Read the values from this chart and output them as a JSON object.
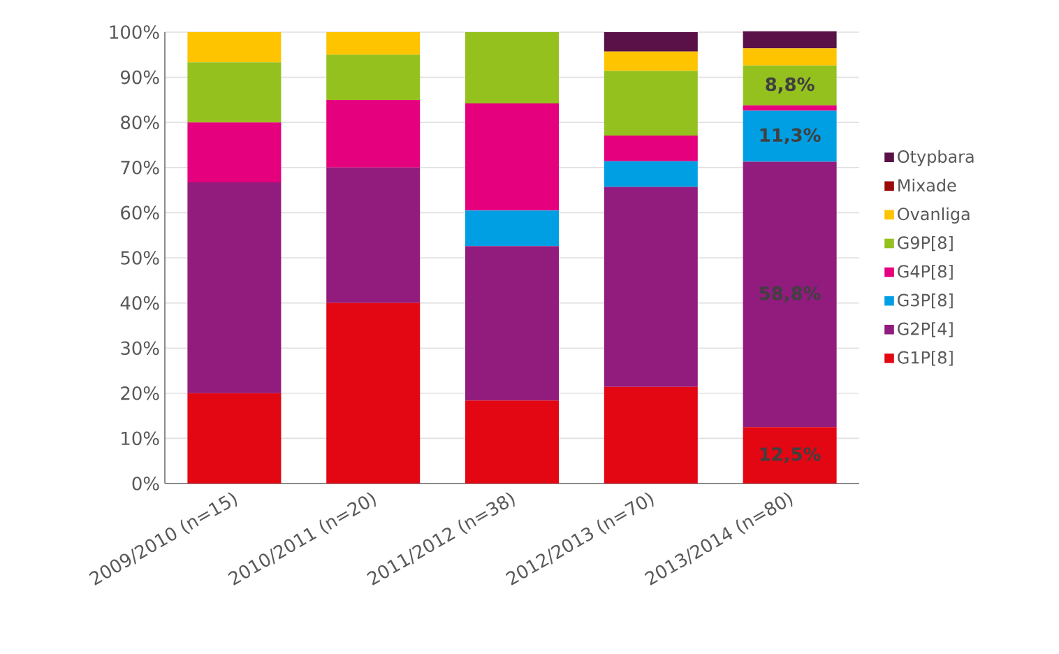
{
  "chart_data": {
    "type": "bar",
    "stacked": true,
    "categories": [
      "2009/2010 (n=15)",
      "2010/2011 (n=20)",
      "2011/2012 (n=38)",
      "2012/2013 (n=70)",
      "2013/2014 (n=80)"
    ],
    "series": [
      {
        "name": "G1P[8]",
        "color": "#e30613",
        "values": [
          20.0,
          40.0,
          18.4,
          21.4,
          12.5
        ],
        "value_labels": [
          null,
          null,
          null,
          null,
          "12,5%"
        ]
      },
      {
        "name": "G2P[4]",
        "color": "#921b7e",
        "values": [
          46.7,
          30.0,
          34.2,
          44.3,
          58.8
        ],
        "value_labels": [
          null,
          null,
          null,
          null,
          "58,8%"
        ]
      },
      {
        "name": "G3P[8]",
        "color": "#009fe3",
        "values": [
          0,
          0,
          7.9,
          5.7,
          11.3
        ],
        "value_labels": [
          null,
          null,
          null,
          null,
          "11,3%"
        ]
      },
      {
        "name": "G4P[8]",
        "color": "#e5007d",
        "values": [
          13.3,
          15.0,
          23.7,
          5.7,
          1.2
        ]
      },
      {
        "name": "G9P[8]",
        "color": "#95c11f",
        "values": [
          13.3,
          10.0,
          15.8,
          14.3,
          8.8
        ],
        "value_labels": [
          null,
          null,
          null,
          null,
          "8,8%"
        ]
      },
      {
        "name": "Ovanliga",
        "color": "#fec400",
        "values": [
          6.7,
          5.0,
          0,
          4.3,
          3.8
        ]
      },
      {
        "name": "Mixade",
        "color": "#9b0a0a",
        "values": [
          0,
          0,
          0,
          0,
          0
        ]
      },
      {
        "name": "Otypbara",
        "color": "#5a1148",
        "values": [
          0,
          0,
          0,
          4.3,
          3.8
        ]
      }
    ],
    "ylim": [
      0,
      100
    ],
    "yticks": [
      {
        "value": 0,
        "label": "0%"
      },
      {
        "value": 10,
        "label": "10%"
      },
      {
        "value": 20,
        "label": "20%"
      },
      {
        "value": 30,
        "label": "30%"
      },
      {
        "value": 40,
        "label": "40%"
      },
      {
        "value": 50,
        "label": "50%"
      },
      {
        "value": 60,
        "label": "60%"
      },
      {
        "value": 70,
        "label": "70%"
      },
      {
        "value": 80,
        "label": "80%"
      },
      {
        "value": 90,
        "label": "90%"
      },
      {
        "value": 100,
        "label": "100%"
      }
    ],
    "grid": "y",
    "legend": "right"
  }
}
